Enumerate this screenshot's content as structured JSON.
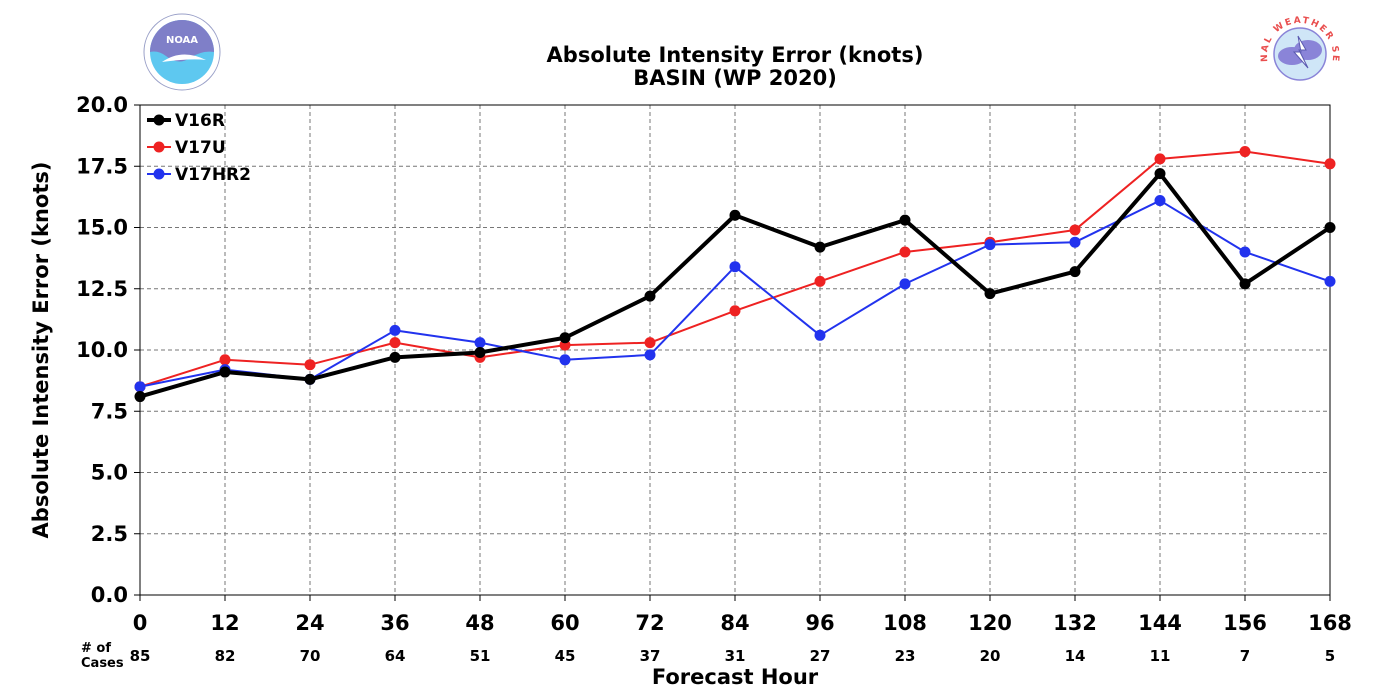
{
  "chart_data": {
    "type": "line",
    "title": "Absolute Intensity Error (knots)",
    "subtitle": "BASIN (WP 2020)",
    "xlabel": "Forecast Hour",
    "ylabel": "Absolute Intensity Error (knots)",
    "x": [
      0,
      12,
      24,
      36,
      48,
      60,
      72,
      84,
      96,
      108,
      120,
      132,
      144,
      156,
      168
    ],
    "x_tick_labels": [
      "0",
      "12",
      "24",
      "36",
      "48",
      "60",
      "72",
      "84",
      "96",
      "108",
      "120",
      "132",
      "144",
      "156",
      "168"
    ],
    "xlim": [
      0,
      168
    ],
    "ylim": [
      0,
      20
    ],
    "y_ticks": [
      0,
      2.5,
      5,
      7.5,
      10,
      12.5,
      15,
      17.5,
      20
    ],
    "y_tick_labels": [
      "0.0",
      "2.5",
      "5.0",
      "7.5",
      "10.0",
      "12.5",
      "15.0",
      "17.5",
      "20.0"
    ],
    "grid": true,
    "legend_position": "top-left",
    "cases_header": [
      "# of",
      "Cases"
    ],
    "cases": [
      "85",
      "82",
      "70",
      "64",
      "51",
      "45",
      "37",
      "31",
      "27",
      "23",
      "20",
      "14",
      "11",
      "7",
      "5"
    ],
    "series": [
      {
        "name": "V16R",
        "color": "#000000",
        "line_width": 4,
        "values": [
          8.1,
          9.1,
          8.8,
          9.7,
          9.9,
          10.5,
          12.2,
          15.5,
          14.2,
          15.3,
          12.3,
          13.2,
          17.2,
          12.7,
          15.0
        ]
      },
      {
        "name": "V17U",
        "color": "#ee2222",
        "line_width": 2,
        "values": [
          8.5,
          9.6,
          9.4,
          10.3,
          9.7,
          10.2,
          10.3,
          11.6,
          12.8,
          14.0,
          14.4,
          14.9,
          17.8,
          18.1,
          17.6
        ]
      },
      {
        "name": "V17HR2",
        "color": "#2233ee",
        "line_width": 2,
        "values": [
          8.5,
          9.2,
          8.8,
          10.8,
          10.3,
          9.6,
          9.8,
          13.4,
          10.6,
          12.7,
          14.3,
          14.4,
          16.1,
          14.0,
          12.8
        ]
      }
    ]
  },
  "logos": {
    "left": {
      "icon": "noaa-logo-icon",
      "text": "NOAA",
      "colors": [
        "#7f7fc8",
        "#5ec8f0"
      ]
    },
    "right": {
      "icon": "nws-logo-icon",
      "text": "NATIONAL WEATHER SERVICE",
      "colors": [
        "#e94e4e",
        "#8a84d8"
      ]
    }
  }
}
